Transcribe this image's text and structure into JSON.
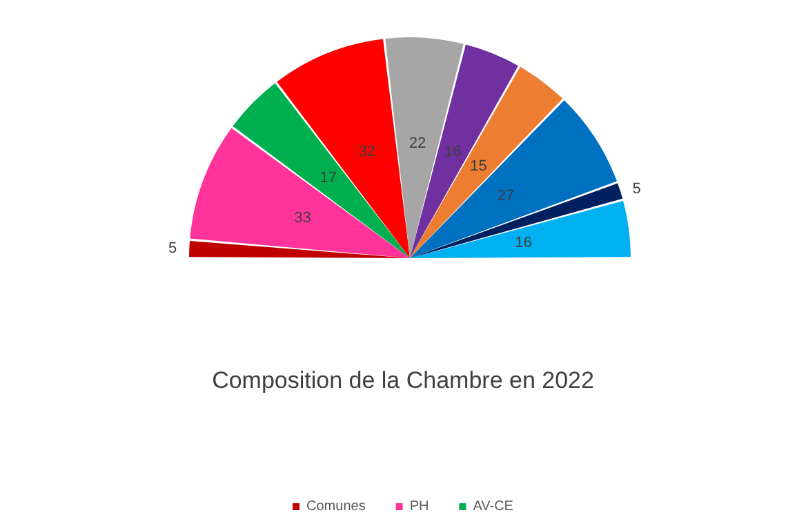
{
  "chart_data": {
    "type": "pie",
    "title": "Composition de la Chambre en 2022",
    "categories": [
      "Comunes",
      "PH",
      "AV-CE",
      null,
      null,
      null,
      null,
      null,
      null,
      null
    ],
    "values": [
      5,
      33,
      17,
      32,
      22,
      16,
      15,
      27,
      5,
      16
    ],
    "colors": [
      "#c00000",
      "#ff3399",
      "#00b050",
      "#ff0000",
      "#a6a6a6",
      "#7030a0",
      "#ed7d31",
      "#0070c0",
      "#002060",
      "#00b0f0"
    ],
    "data_labels": true,
    "legend": "bottom"
  }
}
